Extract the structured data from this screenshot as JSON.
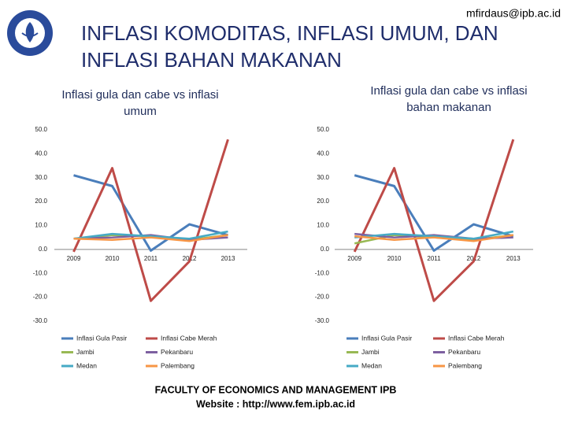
{
  "header": {
    "email": "mfirdaus@ipb.ac.id",
    "title": [
      "INFLASI KOMODITAS, INFLASI UMUM, DAN",
      "INFLASI BAHAN MAKANAN"
    ]
  },
  "footer": {
    "lines": [
      "FACULTY OF ECONOMICS AND MANAGEMENT IPB",
      "Website : http://www.fem.ipb.ac.id"
    ]
  },
  "chart_data": [
    {
      "type": "line",
      "title": [
        "Inflasi gula dan cabe vs inflasi",
        "umum"
      ],
      "categories": [
        "2009",
        "2010",
        "2011",
        "2012",
        "2013"
      ],
      "series": [
        {
          "name": "Inflasi Gula Pasir",
          "color": "#4a7ebb",
          "values": [
            31,
            26.5,
            -0.5,
            10.5,
            6
          ]
        },
        {
          "name": "Inflasi Cabe Merah",
          "color": "#be4b48",
          "values": [
            -1,
            34,
            -21.5,
            -5,
            46
          ]
        },
        {
          "name": "Jambi",
          "color": "#98b954",
          "values": [
            4.5,
            6,
            5.5,
            4,
            6
          ]
        },
        {
          "name": "Pekanbaru",
          "color": "#7d60a0",
          "values": [
            4.5,
            5,
            6,
            4,
            5
          ]
        },
        {
          "name": "Medan",
          "color": "#46aac5",
          "values": [
            4.5,
            6.5,
            5.5,
            4.5,
            7.5
          ]
        },
        {
          "name": "Palembang",
          "color": "#f79646",
          "values": [
            4.5,
            4,
            5,
            3.5,
            6
          ]
        }
      ],
      "ylim": [
        -30,
        50
      ],
      "yticks": [
        {
          "value": -30,
          "label": "-30.0"
        },
        {
          "value": -20,
          "label": "-20.0"
        },
        {
          "value": -10,
          "label": "-10.0"
        },
        {
          "value": 0,
          "label": "0.0"
        },
        {
          "value": 10,
          "label": "10.0"
        },
        {
          "value": 20,
          "label": "20.0"
        },
        {
          "value": 30,
          "label": "30.0"
        },
        {
          "value": 40,
          "label": "40.0"
        },
        {
          "value": 50,
          "label": "50.0"
        }
      ],
      "grid": false,
      "legend": "bottom"
    },
    {
      "type": "line",
      "title": [
        "Inflasi gula dan cabe vs inflasi",
        "bahan makanan"
      ],
      "categories": [
        "2009",
        "2010",
        "2011",
        "2012",
        "2013"
      ],
      "series": [
        {
          "name": "Inflasi Gula Pasir",
          "color": "#4a7ebb",
          "values": [
            31,
            26.5,
            -0.5,
            10.5,
            5.5
          ]
        },
        {
          "name": "Inflasi Cabe Merah",
          "color": "#be4b48",
          "values": [
            -1,
            34,
            -21.5,
            -5,
            46
          ]
        },
        {
          "name": "Jambi",
          "color": "#98b954",
          "values": [
            2.5,
            6,
            5,
            4,
            6
          ]
        },
        {
          "name": "Pekanbaru",
          "color": "#7d60a0",
          "values": [
            6.5,
            5,
            6,
            4.5,
            5
          ]
        },
        {
          "name": "Medan",
          "color": "#46aac5",
          "values": [
            5,
            6.5,
            5.5,
            4.5,
            7.5
          ]
        },
        {
          "name": "Palembang",
          "color": "#f79646",
          "values": [
            5.5,
            4,
            5,
            3.5,
            6
          ]
        }
      ],
      "ylim": [
        -30,
        50
      ],
      "yticks": [
        {
          "value": -30,
          "label": "-30.0"
        },
        {
          "value": -20,
          "label": "-20.0"
        },
        {
          "value": -10,
          "label": "-10.0"
        },
        {
          "value": 0,
          "label": "0.0"
        },
        {
          "value": 10,
          "label": "10.0"
        },
        {
          "value": 20,
          "label": "20.0"
        },
        {
          "value": 30,
          "label": "30.0"
        },
        {
          "value": 40,
          "label": "40.0"
        },
        {
          "value": 50,
          "label": "50.0"
        }
      ],
      "grid": false,
      "legend": "bottom"
    }
  ]
}
